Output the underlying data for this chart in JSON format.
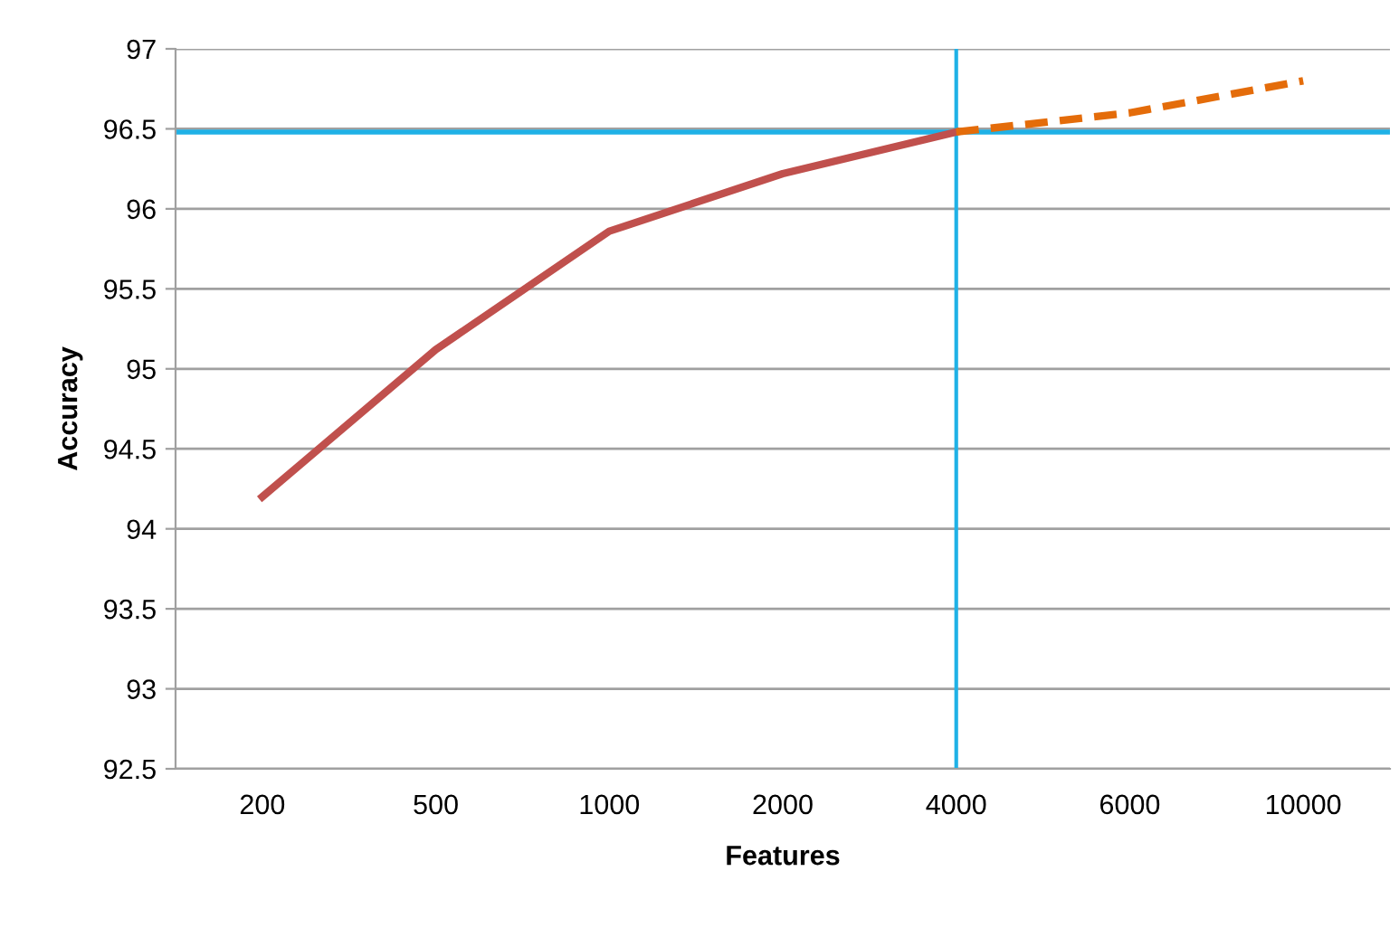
{
  "chart_data": {
    "type": "line",
    "xlabel": "Features",
    "ylabel": "Accuracy",
    "categories": [
      "200",
      "500",
      "1000",
      "2000",
      "4000",
      "6000",
      "10000"
    ],
    "series": [
      {
        "color": "#c0504d",
        "line_style": "solid",
        "values": [
          94.2,
          95.12,
          95.86,
          96.22,
          96.48,
          null,
          null
        ]
      },
      {
        "color": "#e46c0a",
        "line_style": "dashed",
        "values": [
          null,
          null,
          null,
          null,
          96.48,
          96.6,
          96.8
        ]
      }
    ],
    "ylim": [
      92.5,
      97
    ],
    "yticks": [
      92.5,
      93,
      93.5,
      94,
      94.5,
      95,
      95.5,
      96,
      96.5,
      97
    ],
    "grid": "y",
    "marker": "none",
    "ref_lines": [
      {
        "axis": "y",
        "value": 96.48,
        "color": "#1fb1e6"
      },
      {
        "axis": "x",
        "value": "4000",
        "color": "#1fb1e6"
      }
    ]
  }
}
